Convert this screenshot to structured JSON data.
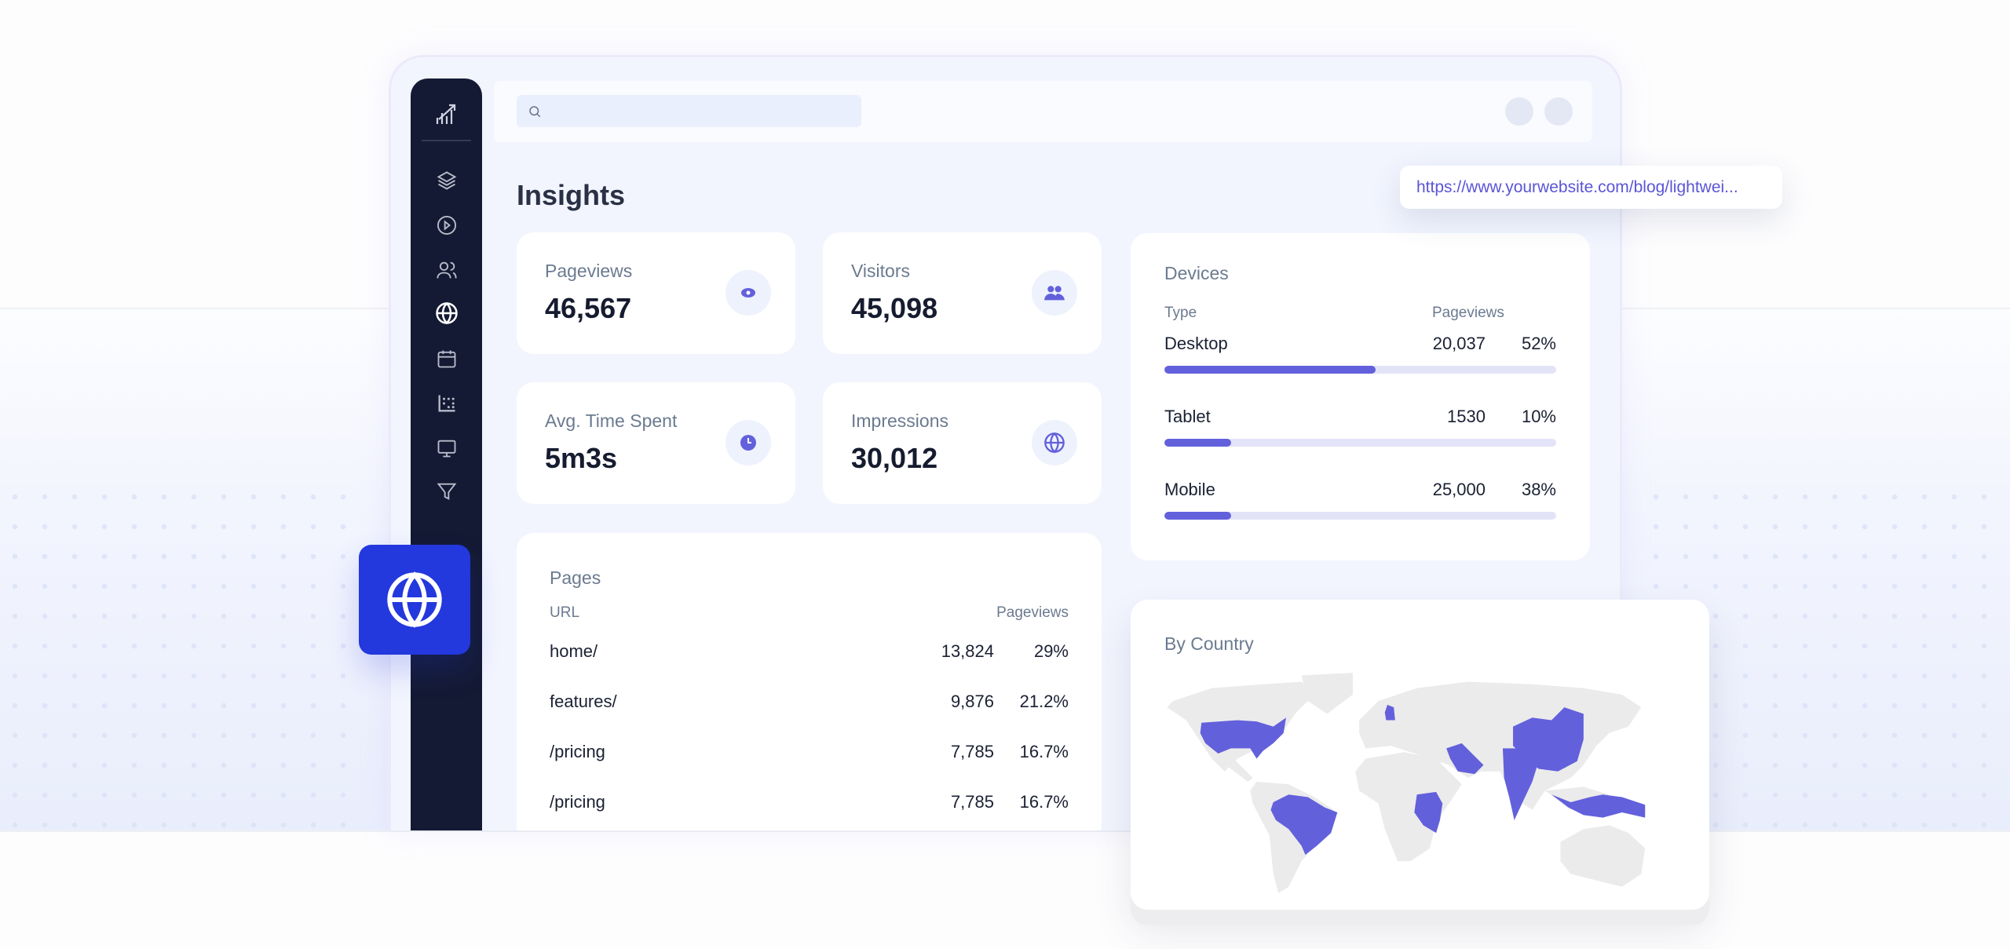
{
  "colors": {
    "accent": "#6360dc",
    "sidebar": "#141a33",
    "tile": "#2338dd",
    "map_land": "#ebebeb"
  },
  "sidebar": {
    "items": [
      {
        "icon": "logo-icon"
      },
      {
        "icon": "layers-icon"
      },
      {
        "icon": "play-circle-icon"
      },
      {
        "icon": "users-icon"
      },
      {
        "icon": "globe-icon",
        "active": true
      },
      {
        "icon": "calendar-icon"
      },
      {
        "icon": "dot-grid-icon"
      },
      {
        "icon": "monitor-icon"
      },
      {
        "icon": "filter-icon"
      }
    ]
  },
  "search": {
    "placeholder": ""
  },
  "page": {
    "title": "Insights"
  },
  "stats": [
    {
      "label": "Pageviews",
      "value": "46,567",
      "icon": "eye-icon"
    },
    {
      "label": "Visitors",
      "value": "45,098",
      "icon": "users-icon"
    },
    {
      "label": "Avg. Time Spent",
      "value": "5m3s",
      "icon": "clock-icon"
    },
    {
      "label": "Impressions",
      "value": "30,012",
      "icon": "globe-icon"
    }
  ],
  "devices": {
    "title": "Devices",
    "col_type": "Type",
    "col_views": "Pageviews",
    "rows": [
      {
        "type": "Desktop",
        "views": "20,037",
        "pct": "52%",
        "bar_fill": 0.54
      },
      {
        "type": "Tablet",
        "views": "1530",
        "pct": "10%",
        "bar_fill": 0.17
      },
      {
        "type": "Mobile",
        "views": "25,000",
        "pct": "38%",
        "bar_fill": 0.17
      }
    ]
  },
  "pages": {
    "title": "Pages",
    "col_url": "URL",
    "col_views": "Pageviews",
    "rows": [
      {
        "url": "home/",
        "views": "13,824",
        "pct": "29%"
      },
      {
        "url": "features/",
        "views": "9,876",
        "pct": "21.2%"
      },
      {
        "url": "/pricing",
        "views": "7,785",
        "pct": "16.7%"
      },
      {
        "url": "/pricing",
        "views": "7,785",
        "pct": "16.7%"
      }
    ]
  },
  "popup": {
    "url": "https://www.yourwebsite.com/blog/lightwei..."
  },
  "country": {
    "title": "By Country",
    "highlighted": [
      "United States",
      "Brazil",
      "United Kingdom",
      "Saudi Arabia",
      "DR Congo",
      "India",
      "China",
      "Indonesia"
    ]
  }
}
